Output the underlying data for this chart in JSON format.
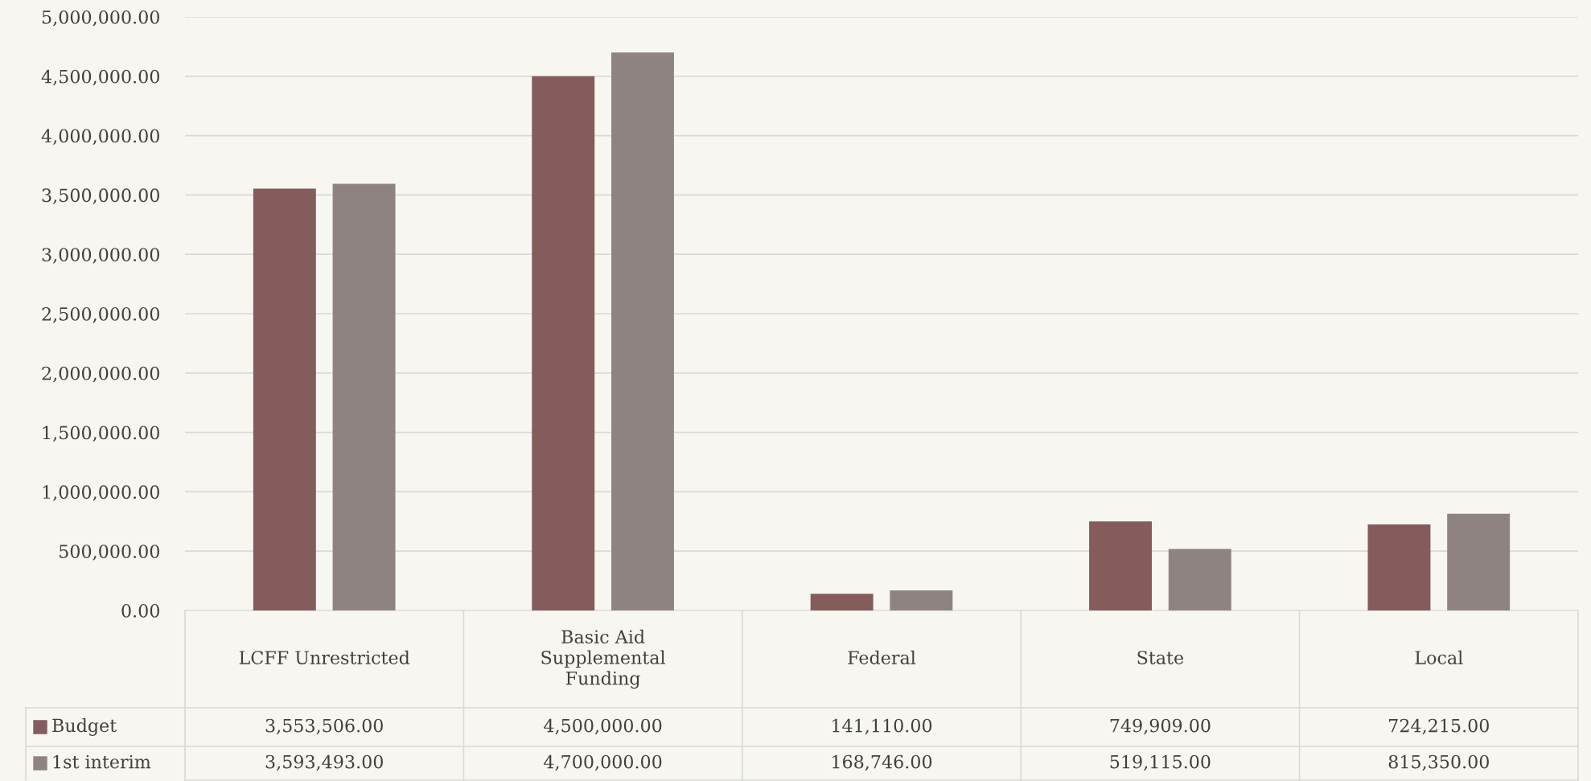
{
  "chart_data": {
    "type": "bar",
    "categories": [
      "LCFF Unrestricted",
      "Basic Aid\nSupplemental\nFunding",
      "Federal",
      "State",
      "Local"
    ],
    "series": [
      {
        "name": "Budget",
        "color": "#845c5c",
        "values": [
          3553506,
          4500000,
          141110,
          749909,
          724215
        ],
        "value_labels": [
          "3,553,506.00",
          "4,500,000.00",
          "141,110.00",
          "749,909.00",
          "724,215.00"
        ]
      },
      {
        "name": "1st interim",
        "color": "#8f8382",
        "values": [
          3593493,
          4700000,
          168746,
          519115,
          815350
        ],
        "value_labels": [
          "3,593,493.00",
          "4,700,000.00",
          "168,746.00",
          "519,115.00",
          "815,350.00"
        ]
      }
    ],
    "ylim": [
      0,
      5000000
    ],
    "yticks": [
      {
        "value": 0,
        "label": "0.00"
      },
      {
        "value": 500000,
        "label": "500,000.00"
      },
      {
        "value": 1000000,
        "label": "1,000,000.00"
      },
      {
        "value": 1500000,
        "label": "1,500,000.00"
      },
      {
        "value": 2000000,
        "label": "2,000,000.00"
      },
      {
        "value": 2500000,
        "label": "2,500,000.00"
      },
      {
        "value": 3000000,
        "label": "3,000,000.00"
      },
      {
        "value": 3500000,
        "label": "3,500,000.00"
      },
      {
        "value": 4000000,
        "label": "4,000,000.00"
      },
      {
        "value": 4500000,
        "label": "4,500,000.00"
      },
      {
        "value": 5000000,
        "label": "5,000,000.00"
      }
    ],
    "grid": "y",
    "legend": "bottom"
  }
}
